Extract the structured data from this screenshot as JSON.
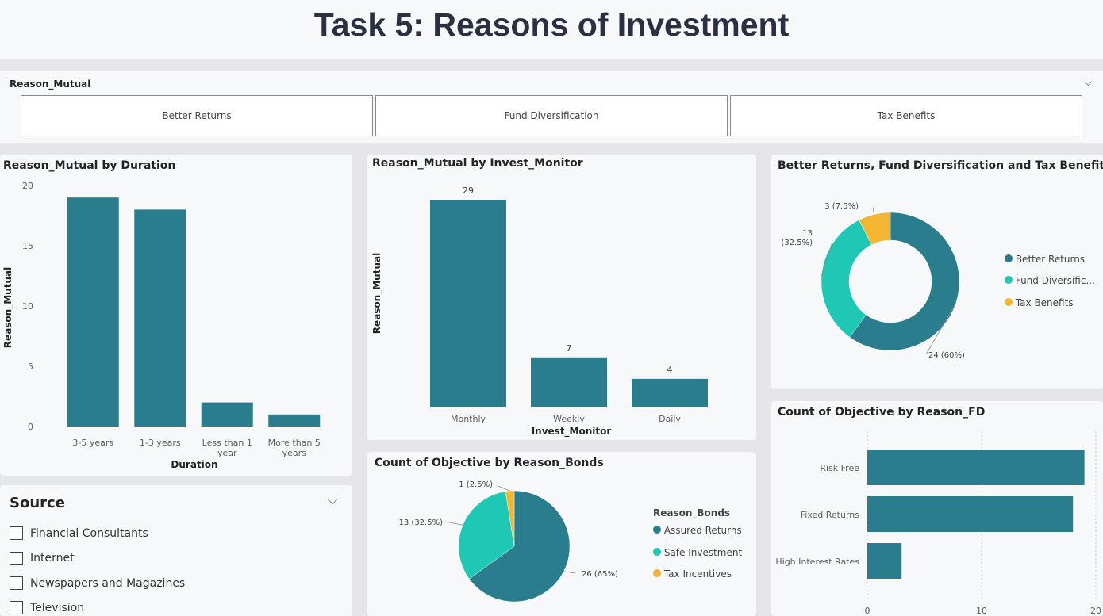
{
  "title": "Task 5: Reasons of Investment",
  "slicer": {
    "title": "Reason_Mutual",
    "tiles": [
      "Better Returns",
      "Fund Diversification",
      "Tax Benefits"
    ]
  },
  "colors": {
    "teal": "#297d8c",
    "mint": "#1ec8b4",
    "gold": "#f4b533"
  },
  "source_slicer": {
    "title": "Source",
    "items": [
      "Financial Consultants",
      "Internet",
      "Newspapers and Magazines",
      "Television"
    ]
  },
  "chart_data": [
    {
      "id": "duration",
      "type": "bar",
      "title": "Reason_Mutual by Duration",
      "xlabel": "Duration",
      "ylabel": "Reason_Mutual",
      "categories": [
        "3-5 years",
        "1-3 years",
        "Less than 1 year",
        "More than 5 years"
      ],
      "category_lines": [
        [
          "3-5 years"
        ],
        [
          "1-3 years"
        ],
        [
          "Less than 1",
          "year"
        ],
        [
          "More than 5",
          "years"
        ]
      ],
      "values": [
        19,
        18,
        2,
        1
      ],
      "ylim": [
        0,
        20
      ],
      "yticks": [
        "0",
        "5",
        "10",
        "15",
        "20"
      ]
    },
    {
      "id": "monitor",
      "type": "bar",
      "title": "Reason_Mutual by Invest_Monitor",
      "xlabel": "Invest_Monitor",
      "ylabel": "Reason_Mutual",
      "categories": [
        "Monthly",
        "Weekly",
        "Daily"
      ],
      "values": [
        29,
        7,
        4
      ],
      "value_labels": [
        "29",
        "7",
        "4"
      ]
    },
    {
      "id": "donut",
      "type": "pie",
      "title": "Better Returns, Fund Diversification and Tax Benefits",
      "legend": [
        "Better Returns",
        "Fund Diversific...",
        "Tax Benefits"
      ],
      "values": [
        24,
        13,
        3
      ],
      "labels": [
        "24 (60%)",
        "13\n(32.5%)",
        "3 (7.5%)"
      ]
    },
    {
      "id": "bonds",
      "type": "pie",
      "title": "Count of Objective by Reason_Bonds",
      "legend_title": "Reason_Bonds",
      "legend": [
        "Assured Returns",
        "Safe Investment",
        "Tax Incentives"
      ],
      "values": [
        26,
        13,
        1
      ],
      "labels": [
        "26 (65%)",
        "13 (32.5%)",
        "1 (2.5%)"
      ]
    },
    {
      "id": "fd",
      "type": "bar",
      "title": "Count of Objective by Reason_FD",
      "categories": [
        "Risk Free",
        "Fixed Returns",
        "High Interest Rates"
      ],
      "values": [
        19,
        18,
        3
      ],
      "xlim": [
        0,
        20
      ],
      "xticks": [
        "0",
        "10",
        "20"
      ]
    }
  ]
}
